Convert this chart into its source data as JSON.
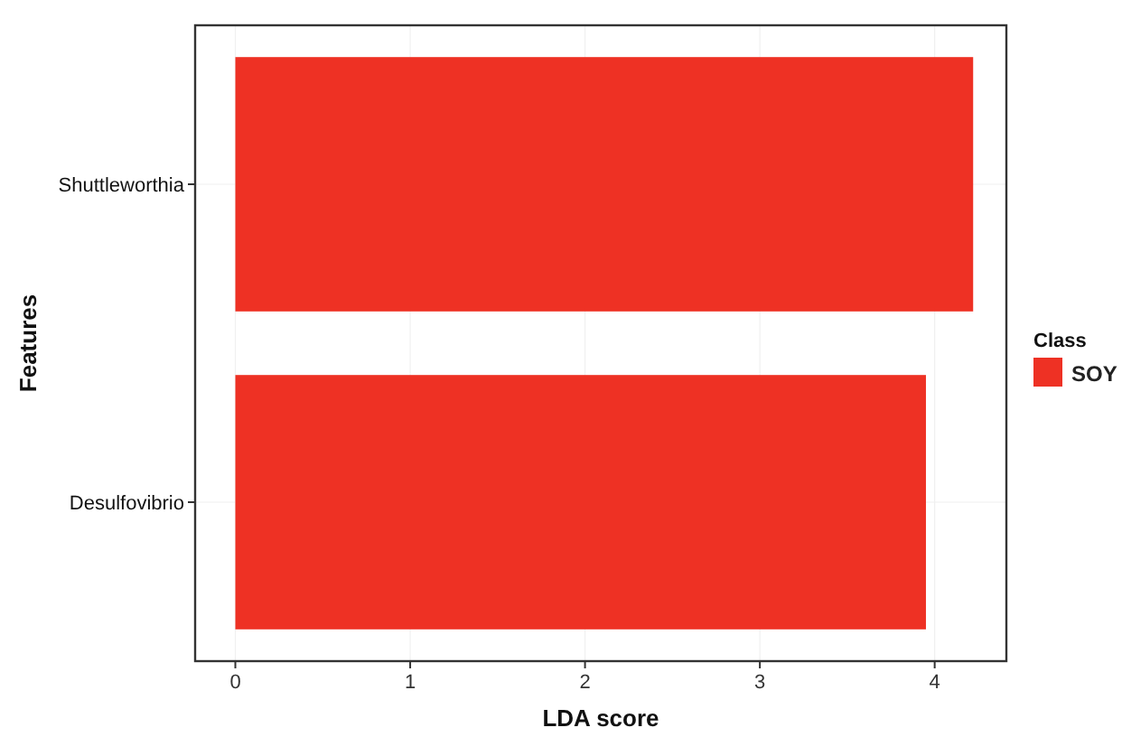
{
  "chart_data": {
    "type": "bar",
    "orientation": "horizontal",
    "categories": [
      "Shuttleworthia",
      "Desulfovibrio"
    ],
    "series": [
      {
        "name": "SOY",
        "color": "#ee3124",
        "values": [
          4.22,
          3.95
        ]
      }
    ],
    "xlabel": "LDA score",
    "ylabel": "Features",
    "legend_title": "Class",
    "legend": "right",
    "xlim": [
      -0.23,
      4.41
    ],
    "xticks": [
      0,
      1,
      2,
      3,
      4
    ],
    "grid": true
  }
}
